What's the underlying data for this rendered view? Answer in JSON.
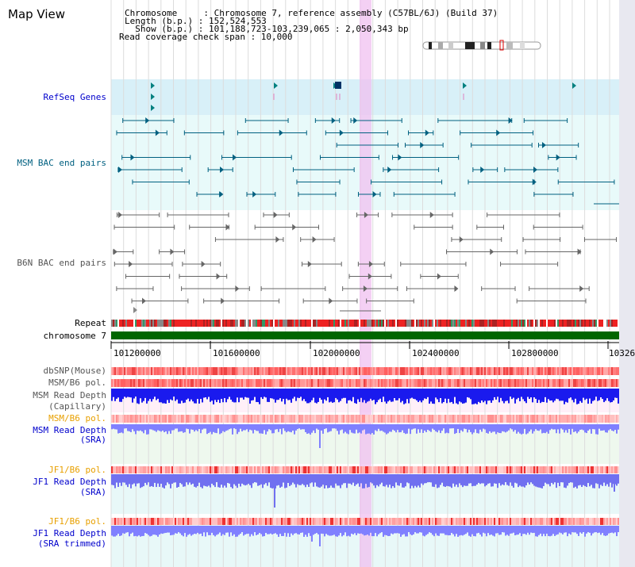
{
  "title": "Map View",
  "info": {
    "chromosome": "Chromosome     : Chromosome 7, reference assembly (C57BL/6J) (Build 37)",
    "length": "Length (b.p.) : 152,524,553",
    "show": "  Show (b.p.) : 101,188,723-103,239,065 : 2,050,343 bp",
    "coverage": "Read coverage check span : 10,000"
  },
  "tracks": {
    "refseq": "RefSeq Genes",
    "msm_bac": "MSM BAC end pairs",
    "b6n_bac": "B6N BAC end pairs",
    "repeat": "Repeat",
    "chromosome": "chromosome 7",
    "dbsnp": "dbSNP(Mouse)",
    "msm_b6_pol_1": "MSM/B6 pol.",
    "msm_read_depth_cap_1": "MSM Read Depth",
    "msm_read_depth_cap_2": "(Capillary)",
    "msm_b6_pol_2": "MSM/B6 pol.",
    "msm_read_depth_sra_1": "MSM Read Depth",
    "msm_read_depth_sra_2": "(SRA)",
    "jf1_b6_pol_1": "JF1/B6 pol.",
    "jf1_read_depth_sra_1": "JF1 Read Depth",
    "jf1_read_depth_sra_2": "(SRA)",
    "jf1_b6_pol_2": "JF1/B6 pol.",
    "jf1_read_depth_trim_1": "JF1 Read Depth",
    "jf1_read_depth_trim_2": "(SRA trimmed)"
  },
  "axis": {
    "ticks": [
      "101200000",
      "101600000",
      "102000000",
      "102400000",
      "102800000",
      "10326"
    ]
  },
  "colors": {
    "blue_label": "#0000cc",
    "teal_label": "#006080",
    "gray_label": "#555555",
    "orange_label": "#e8a000",
    "chromosome_bar": "#006600",
    "highlight": "#f0c0f0"
  }
}
